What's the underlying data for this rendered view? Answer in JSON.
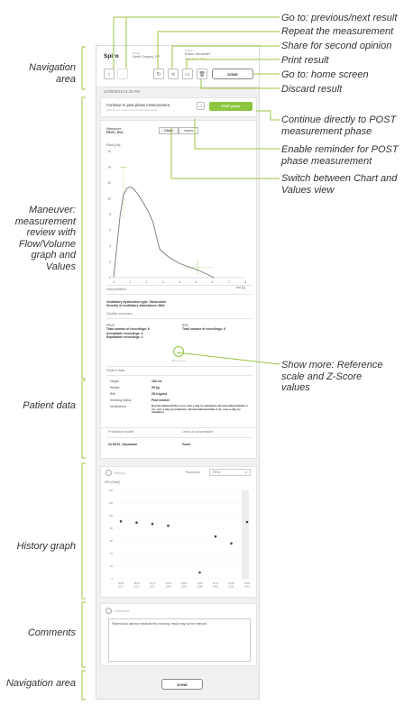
{
  "callouts": {
    "left": [
      {
        "name": "callout-navigation-area",
        "lines": [
          "Navigation",
          "area"
        ]
      },
      {
        "name": "callout-maneuver",
        "lines": [
          "Maneuver:",
          "measurement",
          "review with",
          "Flow/Volume",
          "graph and",
          "Values"
        ]
      },
      {
        "name": "callout-patient-data",
        "lines": [
          "Patient data"
        ]
      },
      {
        "name": "callout-history-graph",
        "lines": [
          "History graph"
        ]
      },
      {
        "name": "callout-comments",
        "lines": [
          "Comments"
        ]
      },
      {
        "name": "callout-navigation-area-bottom",
        "lines": [
          "Navigation area"
        ]
      }
    ],
    "right": [
      {
        "name": "callout-prev-next",
        "lines": [
          "Go to: previous/next result"
        ]
      },
      {
        "name": "callout-repeat",
        "lines": [
          "Repeat the measurement"
        ]
      },
      {
        "name": "callout-share",
        "lines": [
          "Share for second opinion"
        ]
      },
      {
        "name": "callout-print",
        "lines": [
          "Print result"
        ]
      },
      {
        "name": "callout-home",
        "lines": [
          "Go to: home screen"
        ]
      },
      {
        "name": "callout-discard",
        "lines": [
          "Discard result"
        ]
      },
      {
        "name": "callout-continue-post",
        "lines": [
          "Continue directly to POST",
          "measurement phase"
        ]
      },
      {
        "name": "callout-reminder-post",
        "lines": [
          "Enable reminder for POST",
          "phase measurement"
        ]
      },
      {
        "name": "callout-switch-view",
        "lines": [
          "Switch between Chart and",
          "Values view"
        ]
      },
      {
        "name": "callout-show-more",
        "lines": [
          "Show more: Reference",
          "scale and  Z-Score",
          "values"
        ]
      }
    ]
  },
  "nav": {
    "brand": "Spiro",
    "doctor_label": "Doctor",
    "doctor_name": "Smith Gregory, GP",
    "patient_label": "Patient",
    "patient_name": "Evans, Alexander",
    "patient_sub": "Male, 57 yrs, 13th",
    "done_label": "DONE",
    "prev_icon": "chevron-left-icon",
    "next_icon": "chevron-right-icon"
  },
  "timestamp": "22/09/2015 01:26 PM",
  "post_phase": {
    "title": "Continue to post phase measurement",
    "subtitle": "After 10 min result of the pre/post tube tested",
    "button_label": "POST phase"
  },
  "maneuver": {
    "label_line1": "Maneuver:",
    "label_line2": "FEVC, SVC",
    "tab_chart": "Chart",
    "tab_values": "Values",
    "interpretation_head": "Interpretation",
    "interpretation_line1": "Ventilatory dysfunction type: Obstructive",
    "interpretation_line2": "Severity of ventilatory disturbance: Mild",
    "quality_head": "Quality summary",
    "fevc_title": "FEVC",
    "fevc_lines": [
      "Total number of recordings: 6",
      "Acceptable recordings: 4",
      "Repeatable recordings: 2"
    ],
    "svc_title": "SVC",
    "svc_lines": [
      "Total number of recordings: 6"
    ],
    "show_more": "Show more"
  },
  "chart_data": [
    {
      "type": "line",
      "title": "",
      "ylabel": "Flow [L/s]",
      "xlabel": "Vol [L]",
      "xlim": [
        0,
        8
      ],
      "ylim": [
        0,
        16
      ],
      "xticks": [
        0,
        1,
        2,
        3,
        4,
        5,
        6,
        7,
        8
      ],
      "yticks": [
        0,
        2,
        4,
        6,
        8,
        10,
        12,
        14,
        16
      ],
      "series": [
        {
          "x": [
            0,
            0.2,
            0.4,
            0.6,
            0.8,
            1.0,
            1.2,
            1.5,
            1.8,
            2.1,
            2.4,
            2.6,
            2.8,
            3.0,
            3.3,
            3.6,
            4.0,
            4.4,
            4.8,
            5.2,
            5.6,
            5.9,
            6.1
          ],
          "y": [
            0,
            4,
            8,
            10.5,
            11.3,
            11.5,
            11.3,
            10.5,
            9.5,
            8.4,
            7.0,
            5.2,
            3.6,
            3.2,
            2.7,
            2.3,
            1.8,
            1.5,
            1.2,
            0.9,
            0.5,
            0.2,
            0
          ]
        }
      ]
    },
    {
      "type": "scatter",
      "title": "",
      "ylabel": "FEV [%ref]",
      "ylim": [
        0,
        140
      ],
      "yticks": [
        0,
        20,
        40,
        60,
        80,
        100,
        120,
        140
      ],
      "categories": [
        "08/15 2017",
        "08/22 2017",
        "11/13 2017",
        "01/18 2018",
        "05/09 2018",
        "10/25 2018",
        "11/15 2018",
        "02/08 2019",
        "12/04 2019"
      ],
      "values": [
        91,
        89,
        87,
        84,
        null,
        10,
        67,
        56,
        90
      ]
    }
  ],
  "patient": {
    "head": "Patient data",
    "rows": [
      {
        "label": "Height",
        "value": "183 cm"
      },
      {
        "label": "Weight",
        "value": "95 kg"
      },
      {
        "label": "BMI",
        "value": "28.4 kg/m2"
      },
      {
        "label": "Smoking status",
        "value": "Past smoker"
      },
      {
        "label": "Medications",
        "value": "Bronchodilatorinhibis 5 ml, once a day, by inhalation, Bronchodilatorinhibis 5 ml, once a day, by inhalation, Bronchodilatorinhibis 5 ml, once a day, by inhalation"
      }
    ],
    "prediction_head": "Prediction model",
    "prediction_value": "GLI2012_Caucasian",
    "cooperation_head": "Level of cooperation",
    "cooperation_value": "Good"
  },
  "history": {
    "title": "History",
    "parameter_label": "Parameter",
    "parameter_value": "FEV1",
    "y_unit": "FEV [%ref]"
  },
  "comment": {
    "title": "Comment",
    "text": "Patient took asthma medicine this morning, result may not be relevant."
  },
  "bottom": {
    "done_label": "DONE"
  },
  "colors": {
    "accent": "#8cc63f",
    "line": "#777777"
  }
}
